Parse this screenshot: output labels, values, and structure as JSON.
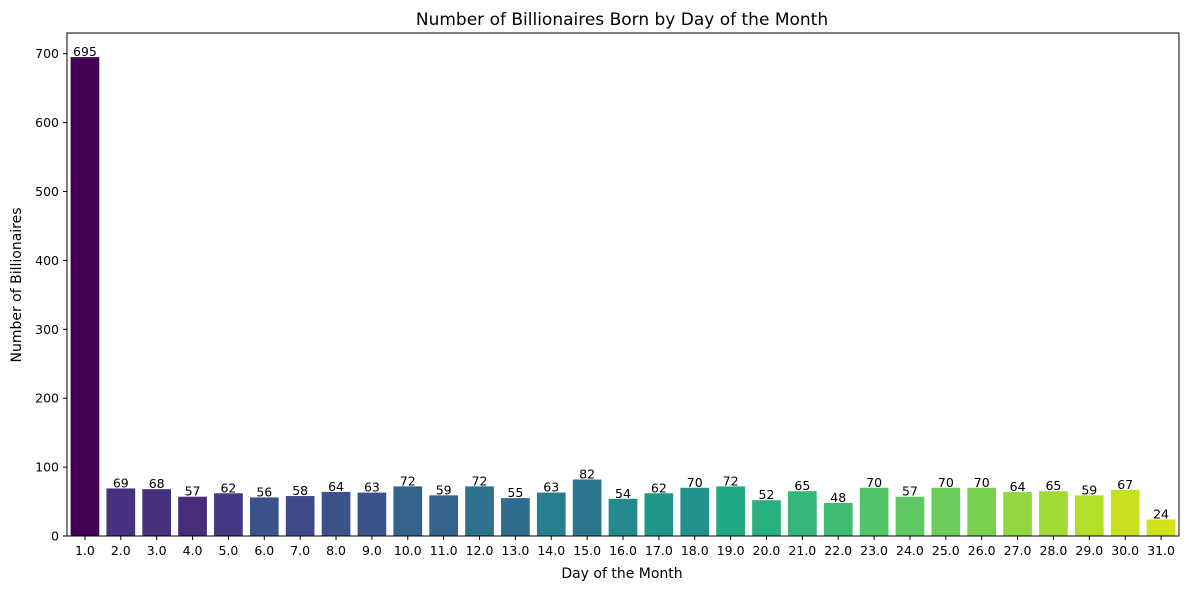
{
  "chart_data": {
    "type": "bar",
    "title": "Number of Billionaires Born by Day of the Month",
    "xlabel": "Day of the Month",
    "ylabel": "Number of Billionaires",
    "categories": [
      "1.0",
      "2.0",
      "3.0",
      "4.0",
      "5.0",
      "6.0",
      "7.0",
      "8.0",
      "9.0",
      "10.0",
      "11.0",
      "12.0",
      "13.0",
      "14.0",
      "15.0",
      "16.0",
      "17.0",
      "18.0",
      "19.0",
      "20.0",
      "21.0",
      "22.0",
      "23.0",
      "24.0",
      "25.0",
      "26.0",
      "27.0",
      "28.0",
      "29.0",
      "30.0",
      "31.0"
    ],
    "values": [
      695,
      69,
      68,
      57,
      62,
      56,
      58,
      64,
      63,
      72,
      59,
      72,
      55,
      63,
      82,
      54,
      62,
      70,
      72,
      52,
      65,
      48,
      70,
      57,
      70,
      70,
      64,
      65,
      59,
      67,
      24
    ],
    "ylim": [
      0,
      730
    ],
    "yticks": [
      "0",
      "100",
      "200",
      "300",
      "400",
      "500",
      "600",
      "700"
    ],
    "grid": false,
    "palette": "viridis",
    "colors": [
      "#440154",
      "#46327e",
      "#45317e",
      "#472d7b",
      "#443983",
      "#3b528b",
      "#3e4989",
      "#3b528b",
      "#3a538b",
      "#33638d",
      "#32648e",
      "#2c728e",
      "#2f6c8e",
      "#277f8e",
      "#2a788e",
      "#23898e",
      "#1f988b",
      "#21918c",
      "#22a884",
      "#2ab07f",
      "#35b779",
      "#3fbc73",
      "#52c569",
      "#5ec962",
      "#6ccd5a",
      "#7ad151",
      "#90d743",
      "#a2da37",
      "#b5de2b",
      "#c8e020",
      "#d1e21b"
    ]
  }
}
